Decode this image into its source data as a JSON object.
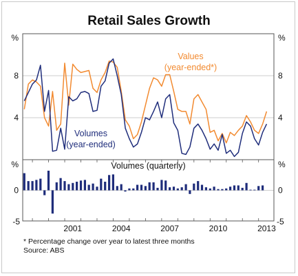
{
  "chart_data": {
    "type": "line",
    "title": "Retail Sales Growth",
    "y_unit": "%",
    "x_ticks": [
      "2001",
      "2004",
      "2007",
      "2010",
      "2013"
    ],
    "top_panel": {
      "ylim": [
        0,
        12
      ],
      "y_ticks": [
        4,
        8
      ],
      "grid": true,
      "series": [
        {
          "name": "Values",
          "label_lines": [
            "Values",
            "(year-ended*)"
          ],
          "color": "#f28a30",
          "points": [
            [
              1998.5,
              4.8
            ],
            [
              1998.75,
              7.2
            ],
            [
              1999.0,
              7.6
            ],
            [
              1999.25,
              7.4
            ],
            [
              1999.5,
              7.0
            ],
            [
              1999.75,
              4.0
            ],
            [
              2000.0,
              3.2
            ],
            [
              2000.25,
              6.5
            ],
            [
              2000.5,
              2.8
            ],
            [
              2000.75,
              3.4
            ],
            [
              2001.0,
              9.2
            ],
            [
              2001.25,
              5.2
            ],
            [
              2001.5,
              9.1
            ],
            [
              2001.75,
              8.6
            ],
            [
              2002.0,
              8.3
            ],
            [
              2002.25,
              8.4
            ],
            [
              2002.5,
              8.5
            ],
            [
              2002.75,
              6.8
            ],
            [
              2003.0,
              6.4
            ],
            [
              2003.25,
              7.6
            ],
            [
              2003.5,
              8.3
            ],
            [
              2003.75,
              9.4
            ],
            [
              2004.0,
              9.3
            ],
            [
              2004.25,
              8.8
            ],
            [
              2004.5,
              6.5
            ],
            [
              2004.75,
              3.8
            ],
            [
              2005.0,
              3.2
            ],
            [
              2005.25,
              2.0
            ],
            [
              2005.5,
              2.4
            ],
            [
              2005.75,
              3.6
            ],
            [
              2006.0,
              5.2
            ],
            [
              2006.25,
              6.8
            ],
            [
              2006.5,
              7.8
            ],
            [
              2006.75,
              7.6
            ],
            [
              2007.0,
              7.0
            ],
            [
              2007.25,
              8.1
            ],
            [
              2007.5,
              8.1
            ],
            [
              2007.75,
              6.5
            ],
            [
              2008.0,
              4.8
            ],
            [
              2008.25,
              4.6
            ],
            [
              2008.5,
              4.6
            ],
            [
              2008.75,
              3.4
            ],
            [
              2009.0,
              5.8
            ],
            [
              2009.25,
              6.2
            ],
            [
              2009.5,
              5.5
            ],
            [
              2009.75,
              4.8
            ],
            [
              2010.0,
              2.6
            ],
            [
              2010.25,
              2.8
            ],
            [
              2010.5,
              1.8
            ],
            [
              2010.75,
              2.5
            ],
            [
              2011.0,
              1.6
            ],
            [
              2011.25,
              2.6
            ],
            [
              2011.5,
              2.3
            ],
            [
              2011.75,
              2.8
            ],
            [
              2012.0,
              3.2
            ],
            [
              2012.25,
              4.2
            ],
            [
              2012.5,
              3.6
            ],
            [
              2012.75,
              2.8
            ],
            [
              2013.0,
              2.5
            ],
            [
              2013.25,
              3.4
            ],
            [
              2013.5,
              4.6
            ]
          ]
        },
        {
          "name": "Volumes",
          "label_lines": [
            "Volumes",
            "(year-ended)"
          ],
          "color": "#1f2d7b",
          "points": [
            [
              1998.5,
              5.6
            ],
            [
              1998.75,
              6.4
            ],
            [
              1999.0,
              7.2
            ],
            [
              1999.25,
              7.6
            ],
            [
              1999.5,
              9.0
            ],
            [
              1999.75,
              4.6
            ],
            [
              2000.0,
              6.6
            ],
            [
              2000.25,
              0.8
            ],
            [
              2000.5,
              0.9
            ],
            [
              2000.75,
              3.0
            ],
            [
              2001.0,
              1.0
            ],
            [
              2001.25,
              6.0
            ],
            [
              2001.5,
              5.6
            ],
            [
              2001.75,
              5.8
            ],
            [
              2002.0,
              6.4
            ],
            [
              2002.25,
              6.5
            ],
            [
              2002.5,
              6.3
            ],
            [
              2002.75,
              4.6
            ],
            [
              2003.0,
              4.7
            ],
            [
              2003.25,
              7.0
            ],
            [
              2003.5,
              7.5
            ],
            [
              2003.75,
              9.2
            ],
            [
              2004.0,
              9.6
            ],
            [
              2004.25,
              8.0
            ],
            [
              2004.5,
              6.2
            ],
            [
              2004.75,
              3.0
            ],
            [
              2005.0,
              2.0
            ],
            [
              2005.25,
              1.2
            ],
            [
              2005.5,
              1.5
            ],
            [
              2005.75,
              2.6
            ],
            [
              2006.0,
              4.0
            ],
            [
              2006.25,
              3.8
            ],
            [
              2006.5,
              4.6
            ],
            [
              2006.75,
              5.5
            ],
            [
              2007.0,
              4.0
            ],
            [
              2007.25,
              5.8
            ],
            [
              2007.5,
              6.2
            ],
            [
              2007.75,
              3.5
            ],
            [
              2008.0,
              2.8
            ],
            [
              2008.25,
              0.6
            ],
            [
              2008.5,
              0.5
            ],
            [
              2008.75,
              1.2
            ],
            [
              2009.0,
              3.0
            ],
            [
              2009.25,
              3.4
            ],
            [
              2009.5,
              2.8
            ],
            [
              2009.75,
              2.0
            ],
            [
              2010.0,
              1.0
            ],
            [
              2010.25,
              1.5
            ],
            [
              2010.5,
              0.9
            ],
            [
              2010.75,
              2.4
            ],
            [
              2011.0,
              0.6
            ],
            [
              2011.25,
              0.9
            ],
            [
              2011.5,
              0.3
            ],
            [
              2011.75,
              0.7
            ],
            [
              2012.0,
              2.5
            ],
            [
              2012.25,
              3.6
            ],
            [
              2012.5,
              3.2
            ],
            [
              2012.75,
              2.0
            ],
            [
              2013.0,
              1.4
            ],
            [
              2013.25,
              2.6
            ],
            [
              2013.5,
              3.4
            ]
          ]
        }
      ]
    },
    "bottom_panel": {
      "type": "bar",
      "label": "Volumes (quarterly)",
      "ylim": [
        -5,
        5
      ],
      "y_ticks": [
        0
      ],
      "color": "#1f2d7b",
      "x": [
        1998.5,
        1998.75,
        1999.0,
        1999.25,
        1999.5,
        1999.75,
        2000.0,
        2000.25,
        2000.5,
        2000.75,
        2001.0,
        2001.25,
        2001.5,
        2001.75,
        2002.0,
        2002.25,
        2002.5,
        2002.75,
        2003.0,
        2003.25,
        2003.5,
        2003.75,
        2004.0,
        2004.25,
        2004.5,
        2004.75,
        2005.0,
        2005.25,
        2005.5,
        2005.75,
        2006.0,
        2006.25,
        2006.5,
        2006.75,
        2007.0,
        2007.25,
        2007.5,
        2007.75,
        2008.0,
        2008.25,
        2008.5,
        2008.75,
        2009.0,
        2009.25,
        2009.5,
        2009.75,
        2010.0,
        2010.25,
        2010.5,
        2010.75,
        2011.0,
        2011.25,
        2011.5,
        2011.75,
        2012.0,
        2012.25,
        2012.5,
        2012.75,
        2013.0,
        2013.25
      ],
      "values": [
        2.8,
        1.5,
        1.5,
        1.7,
        1.9,
        -0.8,
        3.2,
        -3.8,
        1.3,
        2.0,
        1.5,
        1.0,
        1.2,
        1.4,
        1.6,
        1.7,
        0.9,
        1.1,
        0.6,
        1.9,
        1.4,
        2.5,
        2.6,
        0.7,
        1.0,
        -0.2,
        0.3,
        0.3,
        0.9,
        0.9,
        0.7,
        1.3,
        1.3,
        0.4,
        1.7,
        1.6,
        0.5,
        0.6,
        0.3,
        0.5,
        1.0,
        -0.6,
        1.1,
        1.5,
        0.9,
        0.5,
        0.3,
        0.6,
        0.2,
        0.2,
        0.3,
        0.6,
        0.8,
        0.8,
        0.4,
        1.2,
        0.1,
        0.1,
        0.7,
        0.8
      ]
    },
    "footnote": "*    Percentage change over year to latest three months",
    "source": "Source: ABS"
  }
}
